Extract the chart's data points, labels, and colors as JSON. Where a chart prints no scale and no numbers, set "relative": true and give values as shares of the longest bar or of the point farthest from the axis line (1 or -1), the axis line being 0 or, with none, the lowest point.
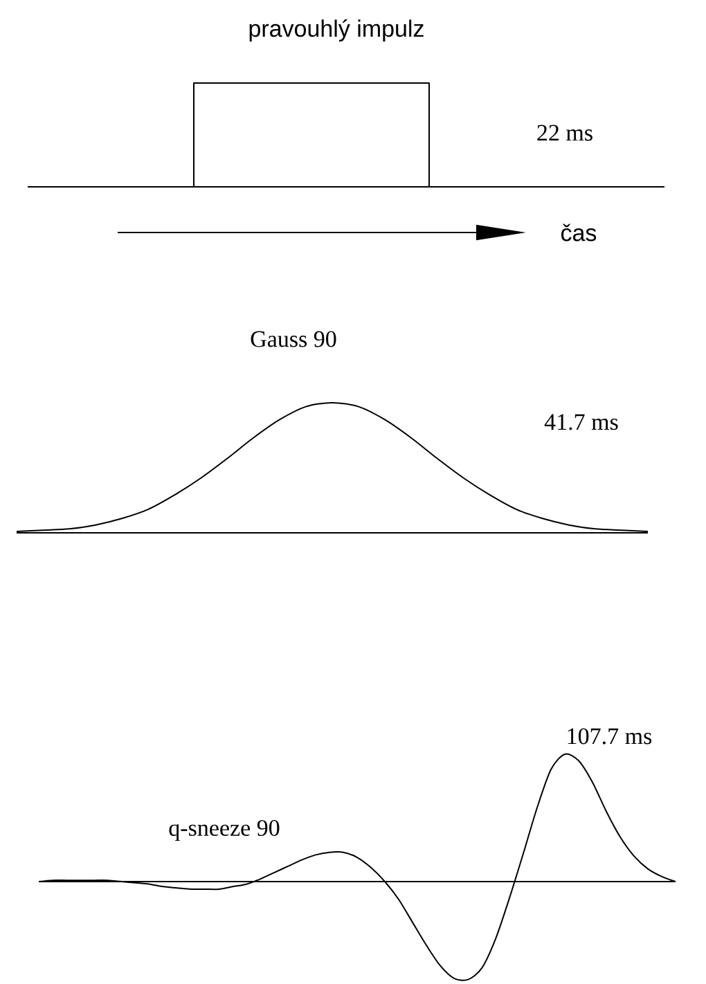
{
  "chart_data": [
    {
      "type": "step",
      "title": "pravouhlý impulz",
      "annotations": [
        "22 ms",
        "čas"
      ],
      "relative": true,
      "color": "#000000",
      "categories": [
        null,
        null,
        null,
        null,
        null,
        null,
        null,
        null,
        null,
        null,
        null,
        null,
        null,
        null,
        null,
        null,
        null,
        null,
        null,
        null,
        null,
        null,
        null,
        null,
        null,
        null,
        null,
        null,
        null,
        null,
        null,
        null,
        null,
        null,
        null,
        null,
        null,
        null,
        null,
        null,
        null,
        null,
        null,
        null,
        null,
        null,
        null
      ],
      "values": [
        0,
        0,
        0,
        0,
        0,
        0,
        0,
        0,
        0,
        0,
        0,
        0,
        1,
        1,
        1,
        1,
        1,
        1,
        1,
        1,
        1,
        1,
        1,
        1,
        1,
        1,
        1,
        1,
        1,
        0,
        0,
        0,
        0,
        0,
        0,
        0,
        0,
        0,
        0,
        0,
        0,
        0,
        0,
        0,
        0,
        0,
        0
      ]
    },
    {
      "type": "line",
      "title": "Gauss 90",
      "annotations": [
        "41.7 ms"
      ],
      "relative": true,
      "color": "#000000",
      "categories": [
        null,
        null,
        null,
        null,
        null,
        null,
        null,
        null,
        null,
        null,
        null,
        null,
        null,
        null,
        null,
        null,
        null,
        null,
        null,
        null,
        null,
        null,
        null,
        null,
        null
      ],
      "values": [
        0.01,
        0.02,
        0.03,
        0.06,
        0.11,
        0.18,
        0.29,
        0.42,
        0.57,
        0.73,
        0.87,
        0.97,
        1,
        0.97,
        0.87,
        0.73,
        0.57,
        0.42,
        0.29,
        0.18,
        0.11,
        0.06,
        0.03,
        0.02,
        0.01
      ]
    },
    {
      "type": "line",
      "title": "q-sneeze 90",
      "annotations": [
        "107.7 ms"
      ],
      "relative": true,
      "color": "#000000",
      "categories": [
        null,
        null,
        null,
        null,
        null,
        null,
        null,
        null,
        null,
        null,
        null,
        null,
        null,
        null,
        null,
        null,
        null,
        null,
        null,
        null,
        null,
        null,
        null,
        null,
        null,
        null,
        null,
        null,
        null,
        null,
        null,
        null,
        null,
        null,
        null,
        null,
        null,
        null,
        null,
        null,
        null,
        null,
        null,
        null,
        null,
        null,
        null
      ],
      "values": [
        0,
        0.01,
        0.01,
        0.01,
        0.01,
        0.01,
        0,
        -0.01,
        -0.02,
        -0.04,
        -0.05,
        -0.06,
        -0.06,
        -0.06,
        -0.04,
        -0.02,
        0.02,
        0.07,
        0.12,
        0.17,
        0.21,
        0.23,
        0.23,
        0.19,
        0.11,
        0,
        -0.14,
        -0.32,
        -0.5,
        -0.66,
        -0.76,
        -0.77,
        -0.68,
        -0.45,
        -0.13,
        0.22,
        0.58,
        0.88,
        1,
        0.95,
        0.78,
        0.55,
        0.35,
        0.2,
        0.1,
        0.04,
        0
      ]
    }
  ]
}
